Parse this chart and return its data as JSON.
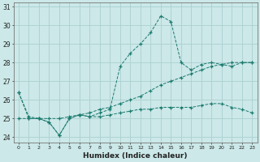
{
  "xlabel": "Humidex (Indice chaleur)",
  "bg_color": "#cce8e8",
  "grid_color": "#aad0d0",
  "line_color": "#1a7a6e",
  "xlim": [
    -0.5,
    23.5
  ],
  "ylim": [
    23.7,
    31.2
  ],
  "yticks": [
    24,
    25,
    26,
    27,
    28,
    29,
    30,
    31
  ],
  "xticks": [
    0,
    1,
    2,
    3,
    4,
    5,
    6,
    7,
    8,
    9,
    10,
    11,
    12,
    13,
    14,
    15,
    16,
    17,
    18,
    19,
    20,
    21,
    22,
    23
  ],
  "series": [
    {
      "x": [
        0,
        1,
        2,
        3,
        4,
        5,
        6,
        7,
        8,
        9,
        10,
        11,
        12,
        13,
        14,
        15,
        16,
        17,
        18,
        19,
        20,
        21,
        22,
        23
      ],
      "y": [
        26.4,
        25.0,
        25.0,
        24.8,
        24.1,
        25.0,
        25.2,
        25.1,
        25.3,
        25.5,
        27.8,
        28.5,
        29.0,
        29.6,
        30.5,
        30.2,
        28.0,
        27.6,
        27.9,
        28.0,
        27.9,
        27.8,
        28.0,
        28.0
      ]
    },
    {
      "x": [
        0,
        1,
        2,
        3,
        4,
        5,
        6,
        7,
        8,
        9,
        10,
        11,
        12,
        13,
        14,
        15,
        16,
        17,
        18,
        19,
        20,
        21,
        22,
        23
      ],
      "y": [
        26.4,
        25.1,
        25.0,
        25.0,
        25.0,
        25.1,
        25.2,
        25.3,
        25.5,
        25.6,
        25.8,
        26.0,
        26.2,
        26.5,
        26.8,
        27.0,
        27.2,
        27.4,
        27.6,
        27.8,
        27.9,
        28.0,
        28.0,
        28.0
      ]
    },
    {
      "x": [
        0,
        1,
        2,
        3,
        4,
        5,
        6,
        7,
        8,
        9,
        10,
        11,
        12,
        13,
        14,
        15,
        16,
        17,
        18,
        19,
        20,
        21,
        22,
        23
      ],
      "y": [
        25.0,
        25.0,
        25.0,
        24.8,
        24.1,
        25.0,
        25.2,
        25.1,
        25.1,
        25.2,
        25.3,
        25.4,
        25.5,
        25.5,
        25.6,
        25.6,
        25.6,
        25.6,
        25.7,
        25.8,
        25.8,
        25.6,
        25.5,
        25.3
      ]
    }
  ]
}
